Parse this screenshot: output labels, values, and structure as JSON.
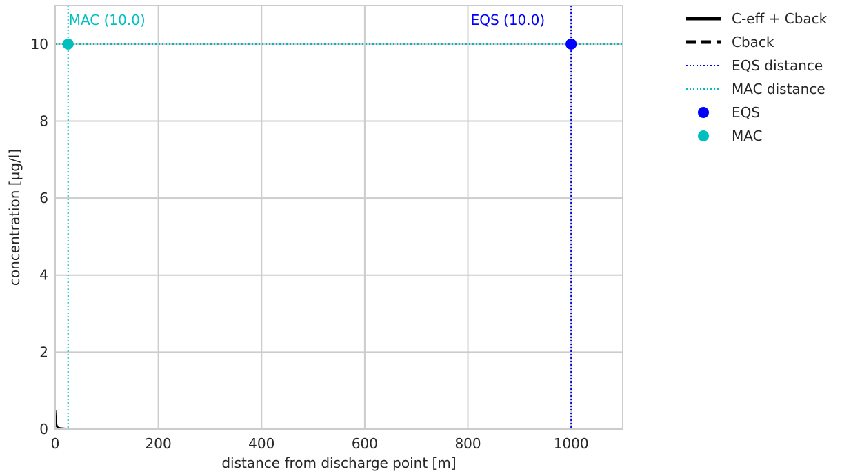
{
  "chart_data": {
    "type": "line",
    "xlabel": "distance from discharge point [m]",
    "ylabel": "concentration [µg/l]",
    "xlim": [
      0,
      1100
    ],
    "ylim": [
      0,
      11
    ],
    "xticks": [
      0,
      200,
      400,
      600,
      800,
      1000
    ],
    "yticks": [
      0,
      2,
      4,
      6,
      8,
      10
    ],
    "grid": true,
    "legend_position": "outside-right-top",
    "series": [
      {
        "name": "C-eff + Cback",
        "style": "solid",
        "color": "#000000",
        "x": [
          0,
          1,
          2,
          3,
          5,
          10,
          20,
          50,
          100,
          1100
        ],
        "y": [
          0.5,
          0.25,
          0.13,
          0.08,
          0.04,
          0.02,
          0.01,
          0.005,
          0.0,
          0.0
        ]
      },
      {
        "name": "Cback",
        "style": "dashed",
        "color": "#000000",
        "x": [
          0,
          1100
        ],
        "y": [
          0,
          0
        ]
      },
      {
        "name": "EQS distance",
        "style": "dotted",
        "color": "#0000ff",
        "vertical_x": 1000,
        "horizontal_y": 10
      },
      {
        "name": "MAC distance",
        "style": "dotted",
        "color": "#00bfbf",
        "vertical_x": 25,
        "horizontal_y": 10
      },
      {
        "name": "EQS",
        "style": "marker",
        "color": "#0000ff",
        "x": [
          1000
        ],
        "y": [
          10
        ]
      },
      {
        "name": "MAC",
        "style": "marker",
        "color": "#00bfbf",
        "x": [
          25
        ],
        "y": [
          10
        ]
      }
    ],
    "annotations": [
      {
        "text": "MAC (10.0)",
        "x": 25,
        "y": 10,
        "color": "#00bfbf",
        "anchor": "left"
      },
      {
        "text": "EQS (10.0)",
        "x": 1000,
        "y": 10,
        "color": "#0000ff",
        "anchor": "right"
      }
    ]
  }
}
